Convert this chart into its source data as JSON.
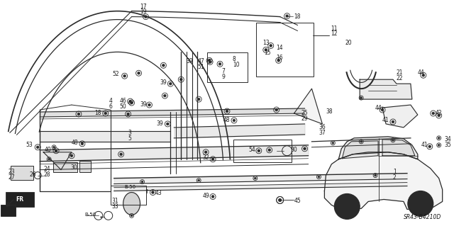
{
  "bg_color": "#ffffff",
  "fig_width": 6.4,
  "fig_height": 3.19,
  "diagram_code": "SR43-B4210D",
  "text_color": "#1a1a1a",
  "line_color": "#2a2a2a",
  "font_size": 5.5
}
